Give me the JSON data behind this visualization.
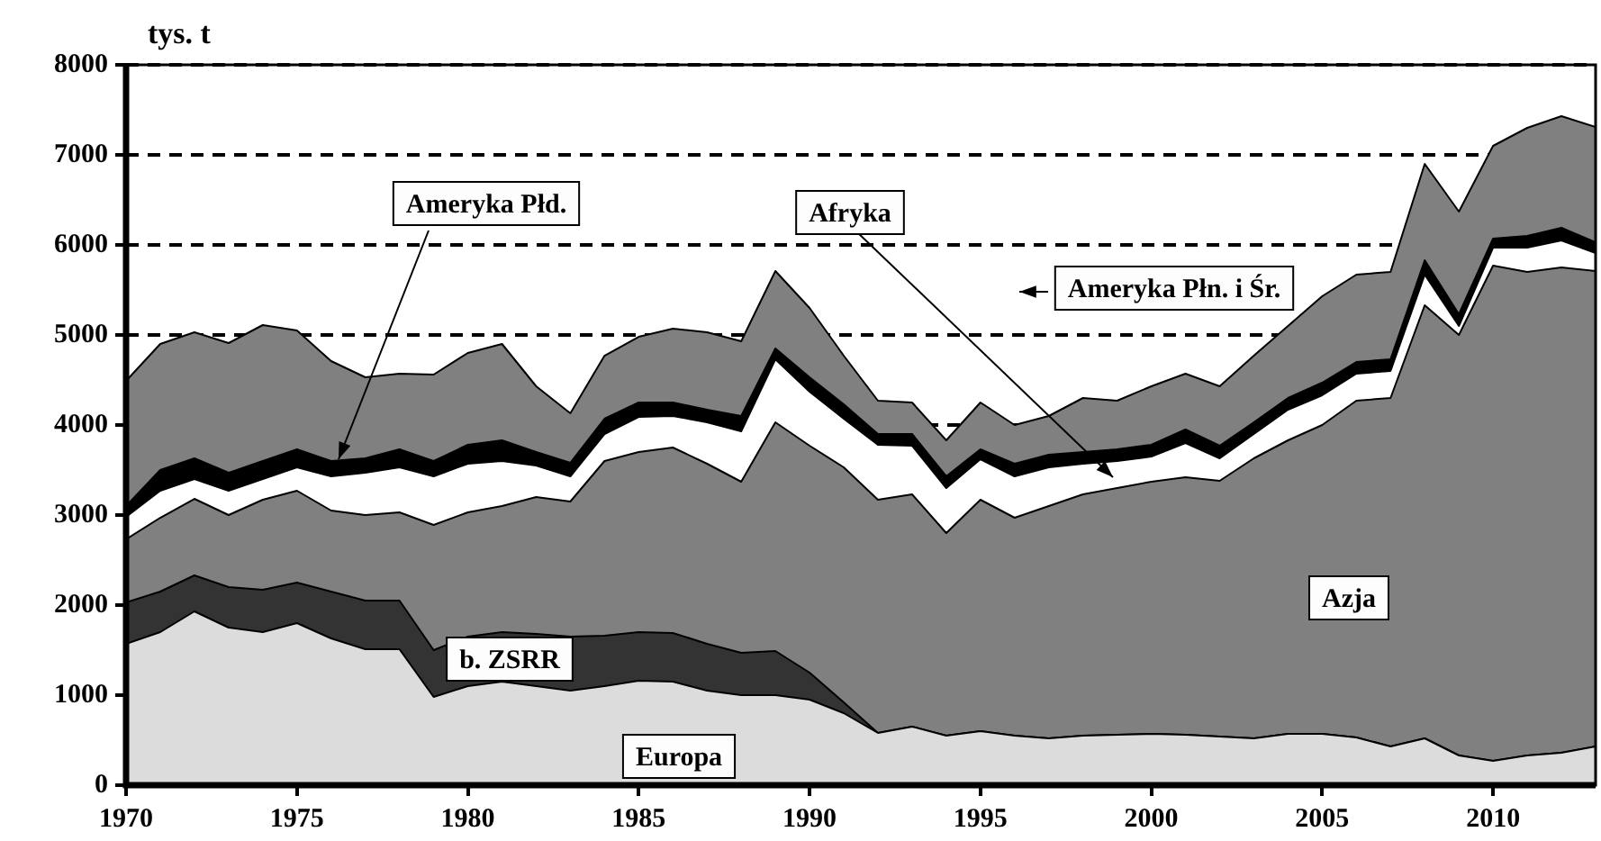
{
  "chart_data": {
    "type": "area",
    "ylabel": "tys. t",
    "stacked": true,
    "grid": "y",
    "x": [
      1970,
      1971,
      1972,
      1973,
      1974,
      1975,
      1976,
      1977,
      1978,
      1979,
      1980,
      1981,
      1982,
      1983,
      1984,
      1985,
      1986,
      1987,
      1988,
      1989,
      1990,
      1991,
      1992,
      1993,
      1994,
      1995,
      1996,
      1997,
      1998,
      1999,
      2000,
      2001,
      2002,
      2003,
      2004,
      2005,
      2006,
      2007,
      2008,
      2009,
      2010,
      2011,
      2012,
      2013
    ],
    "xlim": [
      1970,
      2013
    ],
    "xticks": [
      1970,
      1975,
      1980,
      1985,
      1990,
      1995,
      2000,
      2005,
      2010
    ],
    "ylim": [
      0,
      8000
    ],
    "yticks": [
      0,
      1000,
      2000,
      3000,
      4000,
      5000,
      6000,
      7000,
      8000
    ],
    "series": [
      {
        "name": "Europa",
        "color": "#dcdcdc",
        "values": [
          1570,
          1700,
          1930,
          1750,
          1700,
          1800,
          1630,
          1510,
          1510,
          980,
          1100,
          1150,
          1100,
          1050,
          1100,
          1160,
          1150,
          1050,
          1000,
          1000,
          950,
          800,
          580,
          650,
          550,
          600,
          550,
          520,
          550,
          560,
          570,
          560,
          540,
          520,
          570,
          570,
          530,
          430,
          520,
          330,
          270,
          330,
          360,
          430
        ]
      },
      {
        "name": "b. ZSRR",
        "color": "#333333",
        "values": [
          460,
          450,
          400,
          450,
          470,
          450,
          520,
          540,
          540,
          520,
          550,
          550,
          580,
          600,
          560,
          540,
          540,
          520,
          470,
          490,
          300,
          120,
          0,
          0,
          0,
          0,
          0,
          0,
          0,
          0,
          0,
          0,
          0,
          0,
          0,
          0,
          0,
          0,
          0,
          0,
          0,
          0,
          0,
          0
        ]
      },
      {
        "name": "Azja",
        "color": "#808080",
        "values": [
          700,
          820,
          850,
          800,
          1000,
          1020,
          900,
          950,
          980,
          1390,
          1380,
          1400,
          1520,
          1500,
          1940,
          2000,
          2060,
          2000,
          1900,
          2540,
          2520,
          2610,
          2590,
          2580,
          2250,
          2570,
          2420,
          2580,
          2680,
          2740,
          2800,
          2860,
          2840,
          3110,
          3260,
          3430,
          3740,
          3870,
          4810,
          4670,
          5500,
          5370,
          5390,
          5280
        ]
      },
      {
        "name": "Ameryka Płd.",
        "color": "#ffffff",
        "values": [
          250,
          300,
          220,
          270,
          230,
          260,
          380,
          470,
          500,
          540,
          540,
          500,
          350,
          280,
          300,
          390,
          350,
          460,
          560,
          700,
          600,
          540,
          610,
          540,
          500,
          450,
          460,
          430,
          340,
          300,
          280,
          380,
          250,
          270,
          340,
          330,
          300,
          300,
          340,
          100,
          200,
          270,
          300,
          200
        ]
      },
      {
        "name": "Afryka",
        "color": "#000000",
        "values": [
          120,
          230,
          230,
          200,
          200,
          200,
          170,
          160,
          200,
          170,
          210,
          230,
          150,
          150,
          170,
          160,
          150,
          140,
          170,
          120,
          160,
          160,
          120,
          130,
          130,
          110,
          140,
          140,
          130,
          130,
          130,
          150,
          140,
          130,
          130,
          140,
          130,
          130,
          160,
          130,
          100,
          130,
          140,
          120
        ]
      },
      {
        "name": "Ameryka Płn. i Śr.",
        "color": "#808080",
        "values": [
          1390,
          1400,
          1400,
          1440,
          1510,
          1320,
          1110,
          900,
          840,
          960,
          1020,
          1070,
          730,
          550,
          700,
          730,
          820,
          860,
          830,
          860,
          770,
          540,
          370,
          350,
          400,
          520,
          430,
          430,
          600,
          540,
          650,
          620,
          660,
          740,
          800,
          960,
          970,
          970,
          1070,
          1140,
          1030,
          1200,
          1240,
          1280
        ]
      }
    ]
  }
}
